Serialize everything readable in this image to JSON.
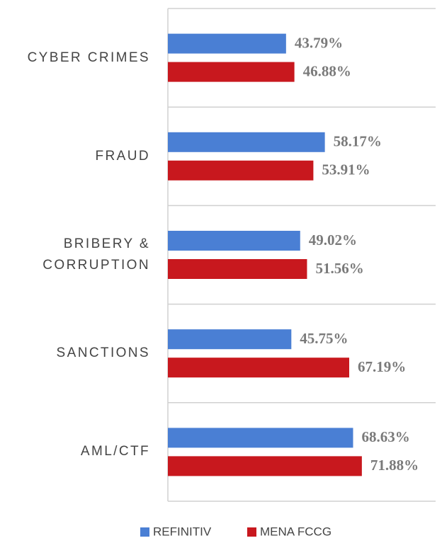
{
  "chart_data": {
    "type": "bar",
    "orientation": "horizontal",
    "categories": [
      "CYBER CRIMES",
      "FRAUD",
      "BRIBERY & CORRUPTION",
      "SANCTIONS",
      "AML/CTF"
    ],
    "series": [
      {
        "name": "REFINITIV",
        "color": "#4a7fd4",
        "values": [
          43.79,
          58.17,
          49.02,
          45.75,
          68.63
        ],
        "value_labels": [
          "43.79%",
          "58.17%",
          "49.02%",
          "45.75%",
          "68.63%"
        ]
      },
      {
        "name": "MENA FCCG",
        "color": "#c8181e",
        "values": [
          46.88,
          53.91,
          51.56,
          67.19,
          71.88
        ],
        "value_labels": [
          "46.88%",
          "53.91%",
          "51.56%",
          "67.19%",
          "71.88%"
        ]
      }
    ],
    "xlim": [
      0,
      100
    ],
    "legend": "bottom"
  }
}
